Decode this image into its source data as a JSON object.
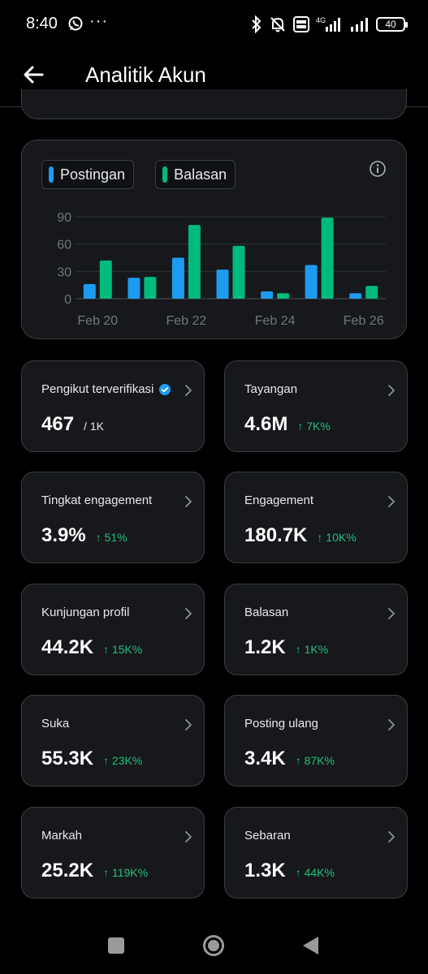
{
  "status_bar": {
    "time": "8:40",
    "more": "···",
    "battery": "40",
    "icons": [
      "whatsapp-icon",
      "bluetooth-icon",
      "mute-icon",
      "volte-icon",
      "signal-4g-icon",
      "signal-icon",
      "battery-icon"
    ]
  },
  "header": {
    "title": "Analitik Akun",
    "back_icon": "arrow-left-icon"
  },
  "chart_data": {
    "type": "bar",
    "categories": [
      "Feb 20",
      "Feb 21",
      "Feb 22",
      "Feb 23",
      "Feb 24",
      "Feb 25",
      "Feb 26"
    ],
    "tick_labels": [
      "Feb 20",
      "Feb 22",
      "Feb 24",
      "Feb 26"
    ],
    "series": [
      {
        "name": "Postingan",
        "color": "#1d9bf0",
        "values": [
          16,
          23,
          45,
          32,
          8,
          37,
          6
        ]
      },
      {
        "name": "Balasan",
        "color": "#00ba7c",
        "values": [
          42,
          24,
          81,
          58,
          6,
          89,
          14
        ]
      }
    ],
    "yticks": [
      0,
      30,
      60,
      90
    ],
    "ylim": [
      0,
      90
    ],
    "grid": true,
    "legend_position": "top-left"
  },
  "stats": [
    {
      "label": "Pengikut terverifikasi",
      "value": "467",
      "suffix": "/ 1K",
      "change": "",
      "verified": true
    },
    {
      "label": "Tayangan",
      "value": "4.6M",
      "suffix": "",
      "change": "↑ 7K%",
      "verified": false
    },
    {
      "label": "Tingkat engagement",
      "value": "3.9%",
      "suffix": "",
      "change": "↑ 51%",
      "verified": false
    },
    {
      "label": "Engagement",
      "value": "180.7K",
      "suffix": "",
      "change": "↑ 10K%",
      "verified": false
    },
    {
      "label": "Kunjungan profil",
      "value": "44.2K",
      "suffix": "",
      "change": "↑ 15K%",
      "verified": false
    },
    {
      "label": "Balasan",
      "value": "1.2K",
      "suffix": "",
      "change": "↑ 1K%",
      "verified": false
    },
    {
      "label": "Suka",
      "value": "55.3K",
      "suffix": "",
      "change": "↑ 23K%",
      "verified": false
    },
    {
      "label": "Posting ulang",
      "value": "3.4K",
      "suffix": "",
      "change": "↑ 87K%",
      "verified": false
    },
    {
      "label": "Markah",
      "value": "25.2K",
      "suffix": "",
      "change": "↑ 119K%",
      "verified": false
    },
    {
      "label": "Sebaran",
      "value": "1.3K",
      "suffix": "",
      "change": "↑ 44K%",
      "verified": false
    }
  ],
  "nav": {
    "icons": [
      "recent-apps-icon",
      "home-icon",
      "back-triangle-icon"
    ]
  }
}
